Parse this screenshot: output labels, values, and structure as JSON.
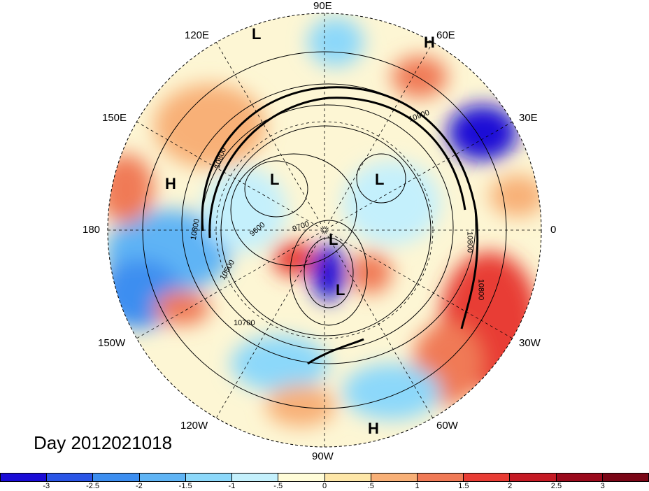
{
  "map": {
    "title": "Day 2012021018",
    "longitude_labels": [
      "90E",
      "60E",
      "30E",
      "0",
      "30W",
      "60W",
      "90W",
      "120W",
      "150W",
      "180",
      "150E",
      "120E"
    ],
    "pressure_centers": [
      "L",
      "H",
      "H",
      "L",
      "L",
      "L",
      "L",
      "H"
    ],
    "contour_labels": [
      "10900",
      "10800",
      "10800",
      "10800",
      "10800",
      "9600",
      "9700",
      "10500",
      "10700"
    ]
  },
  "colorbar": {
    "colors": [
      "#1a0cd6",
      "#2a55e6",
      "#3c8ef0",
      "#5fb4f5",
      "#8cd8fa",
      "#c4f0fc",
      "#fffcd8",
      "#fde6a8",
      "#f8b077",
      "#f07a56",
      "#e83c34",
      "#c51a24",
      "#9a0a1c"
    ],
    "labels": [
      "-3",
      "-2.5",
      "-2",
      "-1.5",
      "-1",
      "-.5",
      "0",
      ".5",
      "1",
      "1.5",
      "2",
      "2.5",
      "3"
    ]
  }
}
